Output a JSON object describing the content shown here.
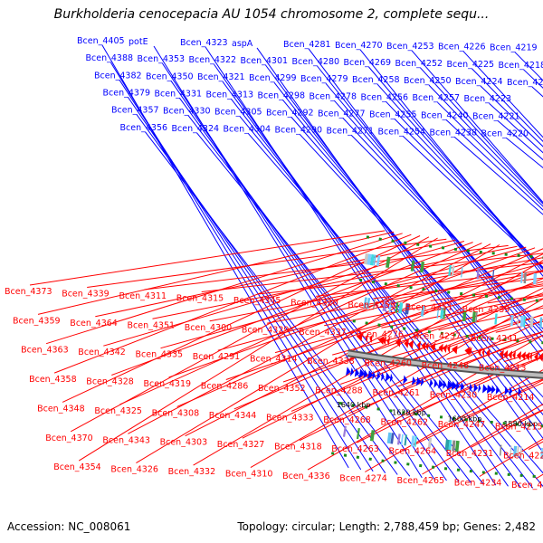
{
  "title": "Burkholderia cenocepacia AU 1054 chromosome 2, complete sequ...",
  "footer": {
    "accession": "Accession: NC_008061",
    "summary": "Topology: circular; Length: 2,788,459 bp; Genes: 2,482"
  },
  "colors": {
    "forward": "#0000ff",
    "reverse": "#ff0000",
    "backbone": "#888888",
    "ticks": "#1a8a1a"
  },
  "kbp_labels": [
    "1640 kbp",
    "1620 kbp",
    "1600 kbp",
    "1580 kbp",
    "1560 kbp",
    "1540 kbp",
    "1520 kbp",
    "1500 kbp",
    "1480 kbp",
    "1460 kbp",
    "1440 kbp",
    "1420 kbp"
  ],
  "top_genes": [
    "Bcen_4405",
    "Bcen_4388",
    "Bcen_4382",
    "Bcen_4379",
    "Bcen_4357",
    "Bcen_4356",
    "potE",
    "Bcen_4353",
    "Bcen_4350",
    "Bcen_4331",
    "Bcen_4330",
    "Bcen_4324",
    "Bcen_4323",
    "Bcen_4322",
    "Bcen_4321",
    "Bcen_4313",
    "Bcen_4305",
    "Bcen_4304",
    "aspA",
    "Bcen_4301",
    "Bcen_4299",
    "Bcen_4298",
    "Bcen_4292",
    "Bcen_4290",
    "Bcen_4281",
    "Bcen_4280",
    "Bcen_4279",
    "Bcen_4278",
    "Bcen_4277",
    "Bcen_4271",
    "Bcen_4270",
    "Bcen_4269",
    "Bcen_4258",
    "Bcen_4256",
    "Bcen_4255",
    "Bcen_4254",
    "Bcen_4253",
    "Bcen_4252",
    "Bcen_4250",
    "Bcen_4257",
    "Bcen_4240",
    "Bcen_4238",
    "Bcen_4226",
    "Bcen_4225",
    "Bcen_4224",
    "Bcen_4223",
    "Bcen_4221",
    "Bcen_4220",
    "Bcen_4219",
    "Bcen_4218",
    "Bcen_4217"
  ],
  "bottom_genes": [
    "Bcen_4373",
    "Bcen_4359",
    "Bcen_4363",
    "Bcen_4358",
    "Bcen_4348",
    "Bcen_4370",
    "Bcen_4354",
    "Bcen_4339",
    "Bcen_4364",
    "Bcen_4342",
    "Bcen_4328",
    "Bcen_4325",
    "Bcen_4343",
    "Bcen_4326",
    "Bcen_4311",
    "Bcen_4351",
    "Bcen_4335",
    "Bcen_4319",
    "Bcen_4308",
    "Bcen_4303",
    "Bcen_4332",
    "Bcen_4315",
    "Bcen_4300",
    "Bcen_4291",
    "Bcen_4286",
    "Bcen_4344",
    "Bcen_4327",
    "Bcen_4310",
    "Bcen_4345",
    "Bcen_4329",
    "Bcen_4314",
    "Bcen_4352",
    "Bcen_4333",
    "Bcen_4318",
    "Bcen_4336",
    "Bcen_4320",
    "Bcen_4337",
    "Bcen_4338",
    "Bcen_4288",
    "Bcen_4268",
    "Bcen_4263",
    "Bcen_4274",
    "Bcen_4259",
    "Bcen_4276",
    "Bcen_4260",
    "Bcen_4261",
    "Bcen_4262",
    "Bcen_4264",
    "Bcen_4265",
    "Bcen_4251",
    "Bcen_4237",
    "Bcen_4246",
    "Bcen_4230",
    "Bcen_4247",
    "Bcen_4231",
    "Bcen_4234",
    "Bcen_4239",
    "Bcen_4241",
    "Bcen_4213",
    "Bcen_4214",
    "Bcen_4215",
    "Bcen_4222",
    "Bcen_4227"
  ]
}
